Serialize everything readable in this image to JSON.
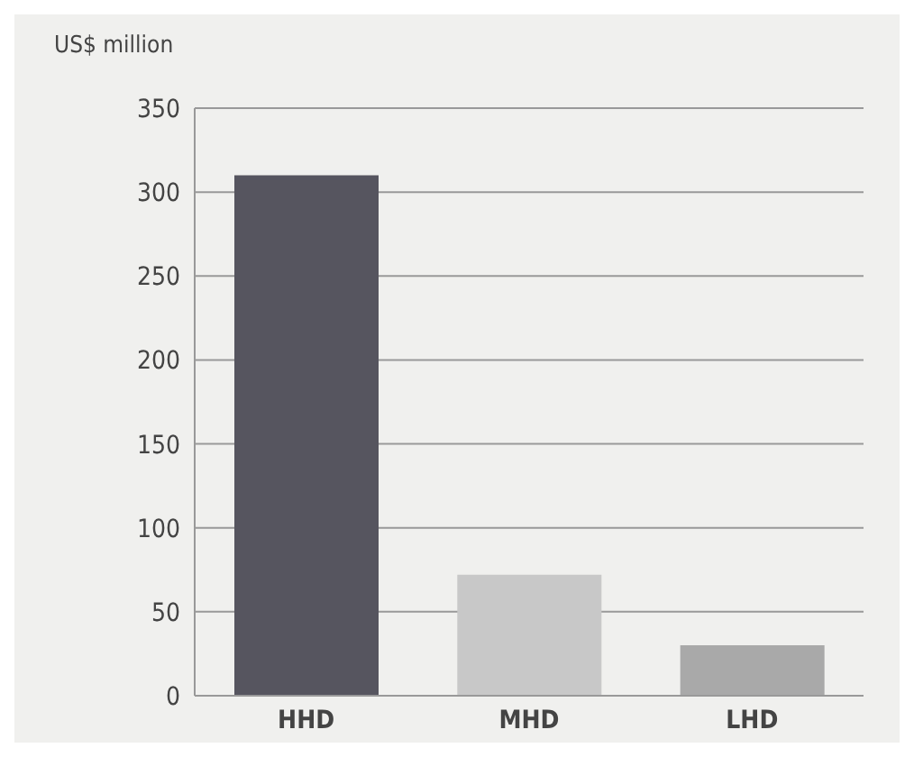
{
  "chart_data": {
    "type": "bar",
    "ylabel": "US$ million",
    "categories": [
      "HHD",
      "MHD",
      "LHD"
    ],
    "values": [
      310,
      72,
      30
    ],
    "colors": [
      "#56555f",
      "#c8c8c8",
      "#a9a9a9"
    ],
    "ylim": [
      0,
      350
    ],
    "yticks": [
      0,
      50,
      100,
      150,
      200,
      250,
      300,
      350
    ],
    "grid": "y"
  }
}
